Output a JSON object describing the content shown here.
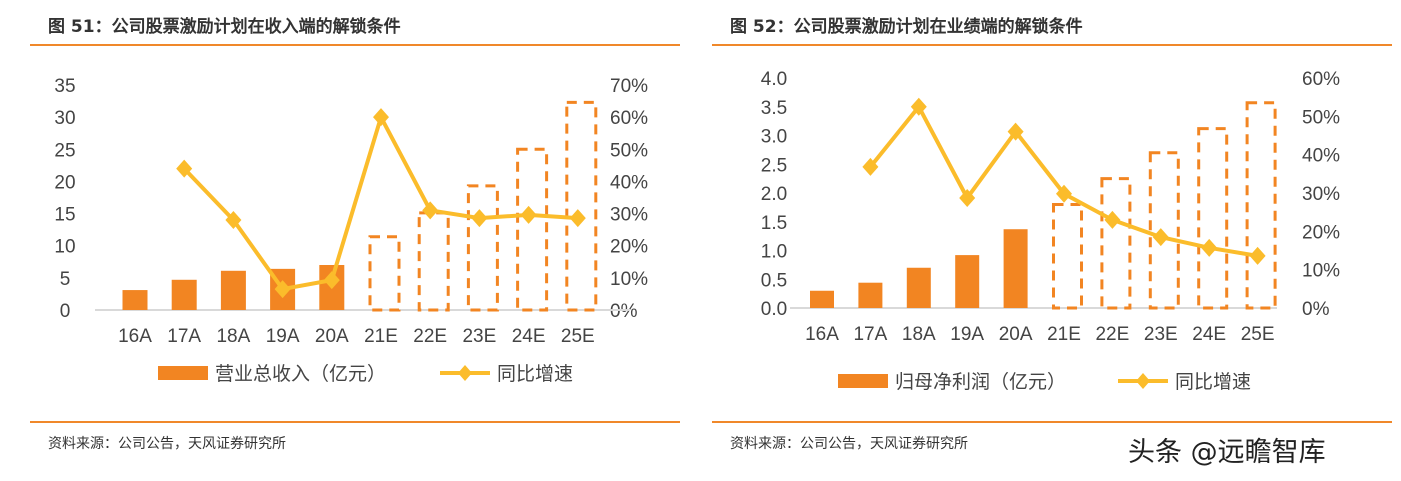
{
  "colors": {
    "bar": "#f28522",
    "line": "#fbbc2b",
    "rule": "#f0882a"
  },
  "watermark": "头条 @远瞻智库",
  "chart_data": [
    {
      "type": "bar+line",
      "title": "图 51：公司股票激励计划在收入端的解锁条件",
      "source": "资料来源：公司公告，天风证券研究所",
      "categories": [
        "16A",
        "17A",
        "18A",
        "19A",
        "20A",
        "21E",
        "22E",
        "23E",
        "24E",
        "25E"
      ],
      "left_ticks": [
        "0",
        "5",
        "10",
        "15",
        "20",
        "25",
        "30",
        "35"
      ],
      "ylim": [
        0,
        35
      ],
      "right_ticks": [
        "0%",
        "10%",
        "20%",
        "30%",
        "40%",
        "50%",
        "60%",
        "70%"
      ],
      "y2lim": [
        0,
        70
      ],
      "estimate_style": "dashed from 21E",
      "series": [
        {
          "name": "营业总收入（亿元）",
          "kind": "bar",
          "values": [
            3.1,
            4.7,
            6.1,
            6.4,
            7.0,
            11.4,
            15.1,
            19.3,
            25.0,
            32.3
          ]
        },
        {
          "name": "同比增速",
          "kind": "line",
          "axis": "right",
          "values": [
            null,
            44,
            28,
            6.5,
            9.3,
            60,
            31,
            28.6,
            29.6,
            28.6
          ]
        }
      ]
    },
    {
      "type": "bar+line",
      "title": "图 52：公司股票激励计划在业绩端的解锁条件",
      "source": "资料来源：公司公告，天风证券研究所",
      "categories": [
        "16A",
        "17A",
        "18A",
        "19A",
        "20A",
        "21E",
        "22E",
        "23E",
        "24E",
        "25E"
      ],
      "left_ticks": [
        "0.0",
        "0.5",
        "1.0",
        "1.5",
        "2.0",
        "2.5",
        "3.0",
        "3.5",
        "4.0"
      ],
      "ylim": [
        0,
        4
      ],
      "right_ticks": [
        "0%",
        "10%",
        "20%",
        "30%",
        "40%",
        "50%",
        "60%"
      ],
      "y2lim": [
        0,
        60
      ],
      "estimate_style": "dashed from 21E",
      "series": [
        {
          "name": "归母净利润（亿元）",
          "kind": "bar",
          "values": [
            0.3,
            0.44,
            0.7,
            0.92,
            1.37,
            1.8,
            2.25,
            2.7,
            3.12,
            3.57
          ]
        },
        {
          "name": "同比增速",
          "kind": "line",
          "axis": "right",
          "values": [
            null,
            36.8,
            52.5,
            28.7,
            46,
            29.8,
            23,
            18.5,
            15.7,
            13.6
          ]
        }
      ]
    }
  ]
}
